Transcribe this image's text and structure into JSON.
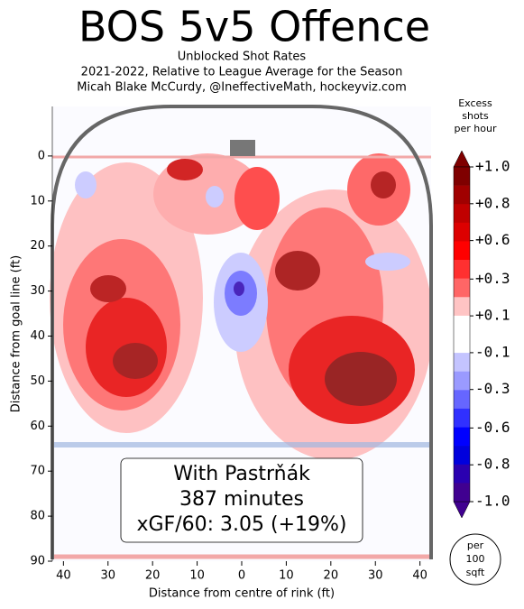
{
  "chart_data": {
    "type": "contour",
    "title": "BOS 5v5 Offence",
    "subtitle": [
      "Unblocked Shot Rates",
      "2021-2022, Relative to League Average for the Season",
      "Micah Blake McCurdy, @IneffectiveMath, hockeyviz.com"
    ],
    "x_label": "Distance from centre of rink (ft)",
    "y_label": "Distance from goal line (ft)",
    "xlim": [
      -42.5,
      42.5
    ],
    "xticks": [
      {
        "value": -40,
        "label": "40"
      },
      {
        "value": -30,
        "label": "30"
      },
      {
        "value": -20,
        "label": "20"
      },
      {
        "value": -10,
        "label": "10"
      },
      0,
      10,
      20,
      30,
      40
    ],
    "ylim": [
      90,
      -11
    ],
    "yticks": [
      0,
      10,
      20,
      30,
      40,
      50,
      60,
      70,
      80,
      90
    ],
    "colorbar": {
      "label": [
        "Excess",
        "shots",
        "per hour"
      ],
      "lim": [
        -1,
        1
      ],
      "ticks": [
        {
          "value": 1,
          "label": "+1.0"
        },
        {
          "value": 0.78,
          "label": "+0.8"
        },
        {
          "value": 0.56,
          "label": "+0.6"
        },
        {
          "value": 0.33,
          "label": "+0.3"
        },
        {
          "value": 0.11,
          "label": "+0.1"
        },
        {
          "value": -0.11,
          "label": "-0.1"
        },
        {
          "value": -0.33,
          "label": "-0.3"
        },
        {
          "value": -0.56,
          "label": "-0.6"
        },
        {
          "value": -0.78,
          "label": "-0.8"
        },
        {
          "value": -1,
          "label": "-1.0"
        }
      ],
      "colors": [
        "#7f0000",
        "#a00000",
        "#c00000",
        "#dd0000",
        "#ff0000",
        "#ff3030",
        "#ff6666",
        "#ffc4c4",
        "#ffffff",
        "#ffffff",
        "#c4c4ff",
        "#9a9aff",
        "#6666ff",
        "#3030ff",
        "#0000ff",
        "#0000dd",
        "#2a00b0",
        "#400090"
      ]
    },
    "annotation": [
      "With Pastrňák",
      "387 minutes",
      "xGF/60: 3.05 (+19%)"
    ],
    "unit_note": [
      "per",
      "100",
      "sqft"
    ]
  }
}
